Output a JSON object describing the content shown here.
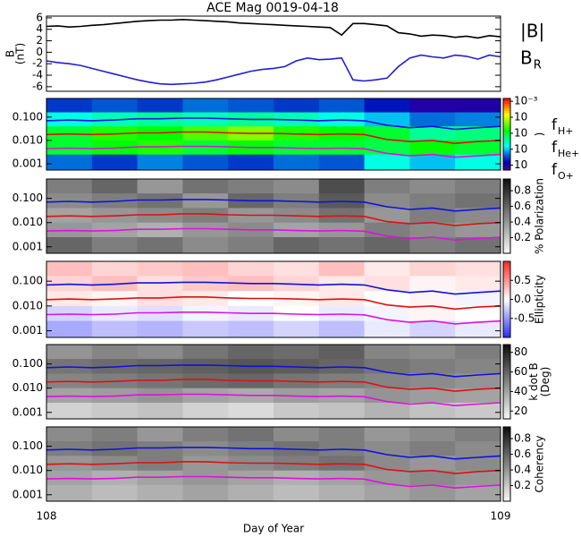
{
  "chart_data": [
    {
      "type": "line",
      "title": "ACE Mag 0019-04-18",
      "ylabel": [
        "B",
        "(nT)"
      ],
      "xlim": [
        108,
        109
      ],
      "ylim": [
        -6.8,
        6.3
      ],
      "yticks": [
        -6,
        -4,
        -2,
        0,
        2,
        4,
        6
      ],
      "x": [
        108,
        108.025,
        108.05,
        108.075,
        108.1,
        108.125,
        108.15,
        108.175,
        108.2,
        108.225,
        108.25,
        108.275,
        108.3,
        108.325,
        108.35,
        108.375,
        108.4,
        108.425,
        108.45,
        108.475,
        108.5,
        108.525,
        108.55,
        108.575,
        108.6,
        108.625,
        108.65,
        108.675,
        108.7,
        108.725,
        108.75,
        108.775,
        108.8,
        108.825,
        108.85,
        108.875,
        108.9,
        108.925,
        108.95,
        108.975,
        109
      ],
      "series": [
        {
          "name": "|B|",
          "color": "#000000",
          "values": [
            4.5,
            4.6,
            4.4,
            4.5,
            4.7,
            4.8,
            5.0,
            5.2,
            5.4,
            5.5,
            5.6,
            5.6,
            5.7,
            5.6,
            5.5,
            5.4,
            5.3,
            5.1,
            5.0,
            4.9,
            4.8,
            4.7,
            4.6,
            4.5,
            4.4,
            4.3,
            3.0,
            5.0,
            5.0,
            4.8,
            4.6,
            3.4,
            3.2,
            2.8,
            3.0,
            2.9,
            2.6,
            2.8,
            2.5,
            2.9,
            2.7
          ]
        },
        {
          "name": "B",
          "subscript": "R",
          "color": "#1f1fd6",
          "values": [
            -1.5,
            -1.8,
            -2.0,
            -2.3,
            -2.8,
            -3.3,
            -3.8,
            -4.3,
            -4.8,
            -5.2,
            -5.5,
            -5.6,
            -5.5,
            -5.4,
            -5.2,
            -4.8,
            -4.3,
            -3.8,
            -3.3,
            -3.0,
            -2.8,
            -2.5,
            -1.5,
            -1.0,
            -1.3,
            -1.2,
            -1.0,
            -4.8,
            -5.0,
            -4.8,
            -4.5,
            -2.5,
            -1.0,
            -0.5,
            -0.8,
            -1.0,
            -0.5,
            -0.7,
            -1.2,
            -0.5,
            -0.8
          ]
        }
      ]
    },
    {
      "type": "heatmap",
      "xlim": [
        108,
        109
      ],
      "ylim": [
        0.00054,
        0.63
      ],
      "ylog": true,
      "yticks": [
        {
          "value": 0.001,
          "label": "0.001"
        },
        {
          "value": 0.01,
          "label": "0.010"
        },
        {
          "value": 0.1,
          "label": "0.100"
        }
      ],
      "colormap": "rainbow",
      "clog": true,
      "clim": [
        5e-08,
        0.0015
      ],
      "clabel": [
        ")"
      ],
      "cticks": [
        {
          "value": 0.001,
          "label": "10⁻³"
        },
        {
          "value": 0.0001,
          "label": "10"
        },
        {
          "value": 1e-05,
          "label": "10"
        },
        {
          "value": 1e-06,
          "label": "10"
        },
        {
          "value": 1e-07,
          "label": "10"
        }
      ],
      "x_bins": [
        108,
        108.1,
        108.2,
        108.3,
        108.4,
        108.5,
        108.6,
        108.7,
        108.8,
        108.9,
        109
      ],
      "y_bins": [
        0.63,
        0.16,
        0.04,
        0.01,
        0.0025,
        0.00054
      ],
      "z": [
        [
          3e-07,
          4e-07,
          3e-07,
          5e-07,
          4e-07,
          3e-07,
          4e-07,
          2e-07,
          1e-07,
          1e-07
        ],
        [
          2e-06,
          3e-06,
          4e-06,
          3e-06,
          4e-06,
          3e-06,
          2e-06,
          1e-06,
          5e-07,
          6e-07
        ],
        [
          1e-05,
          2e-05,
          1.5e-05,
          3e-05,
          5e-05,
          2e-05,
          1.5e-05,
          1e-05,
          4e-06,
          5e-06
        ],
        [
          1e-05,
          1.5e-05,
          2e-05,
          1e-05,
          1.5e-05,
          1e-05,
          1e-05,
          8e-06,
          1.5e-05,
          1e-05
        ],
        [
          5e-07,
          3e-07,
          6e-07,
          4e-07,
          3e-07,
          5e-07,
          4e-07,
          2e-06,
          1e-06,
          2e-06
        ]
      ],
      "x": [
        108,
        108.05,
        108.1,
        108.15,
        108.2,
        108.25,
        108.3,
        108.35,
        108.4,
        108.45,
        108.5,
        108.55,
        108.6,
        108.65,
        108.7,
        108.75,
        108.8,
        108.85,
        108.9,
        108.95,
        109
      ],
      "series": [
        {
          "name": "f",
          "subscript": "H+",
          "color": "#1010e0",
          "values": [
            0.07,
            0.075,
            0.07,
            0.075,
            0.085,
            0.085,
            0.09,
            0.09,
            0.085,
            0.08,
            0.08,
            0.075,
            0.07,
            0.075,
            0.07,
            0.045,
            0.035,
            0.04,
            0.03,
            0.035,
            0.04
          ]
        },
        {
          "name": "f",
          "subscript": "He+",
          "color": "#e01010",
          "values": [
            0.018,
            0.019,
            0.018,
            0.019,
            0.021,
            0.021,
            0.023,
            0.023,
            0.021,
            0.02,
            0.02,
            0.019,
            0.018,
            0.019,
            0.018,
            0.011,
            0.009,
            0.01,
            0.0075,
            0.009,
            0.01
          ]
        },
        {
          "name": "f",
          "subscript": "O+",
          "color": "#e010e0",
          "values": [
            0.0045,
            0.0047,
            0.0045,
            0.0047,
            0.0053,
            0.0053,
            0.0056,
            0.0056,
            0.0053,
            0.005,
            0.005,
            0.0047,
            0.0045,
            0.0047,
            0.0044,
            0.0028,
            0.0022,
            0.0025,
            0.0019,
            0.0022,
            0.0025
          ]
        }
      ]
    },
    {
      "type": "heatmap",
      "xlim": [
        108,
        109
      ],
      "ylim": [
        0.00054,
        0.63
      ],
      "ylog": true,
      "yticks": [
        {
          "value": 0.001,
          "label": "0.001"
        },
        {
          "value": 0.01,
          "label": "0.010"
        },
        {
          "value": 0.1,
          "label": "0.100"
        }
      ],
      "colormap": "gray",
      "clim": [
        0,
        0.95
      ],
      "clabel": [
        "% Polarization"
      ],
      "cticks": [
        0.2,
        0.4,
        0.6,
        0.8
      ],
      "x_bins": [
        108,
        108.1,
        108.2,
        108.3,
        108.4,
        108.5,
        108.6,
        108.7,
        108.8,
        108.9,
        109
      ],
      "y_bins": [
        0.63,
        0.16,
        0.04,
        0.01,
        0.0025,
        0.00054
      ],
      "z": [
        [
          0.5,
          0.6,
          0.4,
          0.55,
          0.5,
          0.45,
          0.7,
          0.5,
          0.45,
          0.5
        ],
        [
          0.45,
          0.5,
          0.55,
          0.4,
          0.6,
          0.5,
          0.65,
          0.45,
          0.5,
          0.55
        ],
        [
          0.35,
          0.4,
          0.45,
          0.5,
          0.4,
          0.45,
          0.55,
          0.4,
          0.5,
          0.45
        ],
        [
          0.4,
          0.35,
          0.3,
          0.4,
          0.45,
          0.35,
          0.4,
          0.5,
          0.45,
          0.4
        ],
        [
          0.6,
          0.5,
          0.55,
          0.45,
          0.5,
          0.6,
          0.55,
          0.6,
          0.5,
          0.55
        ]
      ]
    },
    {
      "type": "heatmap",
      "xlim": [
        108,
        109
      ],
      "ylim": [
        0.00054,
        0.63
      ],
      "ylog": true,
      "yticks": [
        {
          "value": 0.001,
          "label": "0.001"
        },
        {
          "value": 0.01,
          "label": "0.010"
        },
        {
          "value": 0.1,
          "label": "0.100"
        }
      ],
      "colormap": "bwr",
      "clim": [
        -1,
        1
      ],
      "clabel": [
        "Ellipticity"
      ],
      "cticks": [
        0.5,
        {
          "value": 0,
          "label": "0.0"
        },
        -0.5
      ],
      "x_bins": [
        108,
        108.1,
        108.2,
        108.3,
        108.4,
        108.5,
        108.6,
        108.7,
        108.8,
        108.9,
        109
      ],
      "y_bins": [
        0.63,
        0.16,
        0.04,
        0.01,
        0.0025,
        0.00054
      ],
      "z": [
        [
          0.3,
          0.2,
          0.25,
          0.3,
          0.2,
          0.15,
          0.3,
          0.1,
          0.2,
          0.15
        ],
        [
          0.2,
          0.3,
          0.15,
          0.25,
          0.3,
          0.2,
          0.1,
          0.15,
          0.05,
          0.1
        ],
        [
          0.1,
          0.05,
          0.15,
          0.1,
          0.0,
          0.05,
          0.1,
          0.0,
          0.05,
          -0.05
        ],
        [
          -0.2,
          -0.1,
          -0.15,
          -0.05,
          -0.1,
          0.0,
          -0.1,
          -0.05,
          0.05,
          0.0
        ],
        [
          -0.4,
          -0.3,
          -0.35,
          -0.25,
          -0.3,
          -0.2,
          -0.3,
          -0.1,
          -0.2,
          -0.1
        ]
      ]
    },
    {
      "type": "heatmap",
      "xlim": [
        108,
        109
      ],
      "ylim": [
        0.00054,
        0.63
      ],
      "ylog": true,
      "yticks": [
        {
          "value": 0.001,
          "label": "0.001"
        },
        {
          "value": 0.01,
          "label": "0.010"
        },
        {
          "value": 0.1,
          "label": "0.100"
        }
      ],
      "colormap": "gray",
      "clim": [
        12,
        88
      ],
      "clabel": [
        "k dot B",
        "(Deg)"
      ],
      "cticks": [
        20,
        40,
        60,
        80
      ],
      "x_bins": [
        108,
        108.1,
        108.2,
        108.3,
        108.4,
        108.5,
        108.6,
        108.7,
        108.8,
        108.9,
        109
      ],
      "y_bins": [
        0.63,
        0.16,
        0.04,
        0.01,
        0.0025,
        0.00054
      ],
      "z": [
        [
          45,
          50,
          48,
          55,
          60,
          58,
          62,
          50,
          48,
          52
        ],
        [
          55,
          58,
          60,
          62,
          65,
          63,
          60,
          55,
          52,
          50
        ],
        [
          50,
          52,
          55,
          58,
          60,
          55,
          52,
          50,
          48,
          45
        ],
        [
          40,
          42,
          45,
          40,
          38,
          42,
          40,
          45,
          42,
          40
        ],
        [
          25,
          28,
          30,
          25,
          22,
          28,
          30,
          35,
          30,
          28
        ]
      ]
    },
    {
      "type": "heatmap",
      "xlim": [
        108,
        109
      ],
      "ylim": [
        0.00054,
        0.63
      ],
      "ylog": true,
      "yticks": [
        {
          "value": 0.001,
          "label": "0.001"
        },
        {
          "value": 0.01,
          "label": "0.010"
        },
        {
          "value": 0.1,
          "label": "0.100"
        }
      ],
      "colormap": "gray",
      "clim": [
        0,
        0.95
      ],
      "clabel": [
        "Coherency"
      ],
      "cticks": [
        0.2,
        0.4,
        0.6,
        0.8
      ],
      "xticks": [
        108,
        109
      ],
      "xlabel": "Day of Year",
      "x_bins": [
        108,
        108.1,
        108.2,
        108.3,
        108.4,
        108.5,
        108.6,
        108.7,
        108.8,
        108.9,
        109
      ],
      "y_bins": [
        0.63,
        0.16,
        0.04,
        0.01,
        0.0025,
        0.00054
      ],
      "z": [
        [
          0.45,
          0.5,
          0.4,
          0.5,
          0.55,
          0.45,
          0.5,
          0.4,
          0.45,
          0.5
        ],
        [
          0.5,
          0.55,
          0.5,
          0.45,
          0.5,
          0.55,
          0.5,
          0.45,
          0.5,
          0.45
        ],
        [
          0.4,
          0.45,
          0.5,
          0.4,
          0.45,
          0.5,
          0.55,
          0.45,
          0.4,
          0.45
        ],
        [
          0.35,
          0.3,
          0.35,
          0.4,
          0.35,
          0.3,
          0.35,
          0.4,
          0.45,
          0.4
        ],
        [
          0.3,
          0.25,
          0.3,
          0.35,
          0.3,
          0.25,
          0.3,
          0.35,
          0.4,
          0.35
        ]
      ]
    }
  ]
}
